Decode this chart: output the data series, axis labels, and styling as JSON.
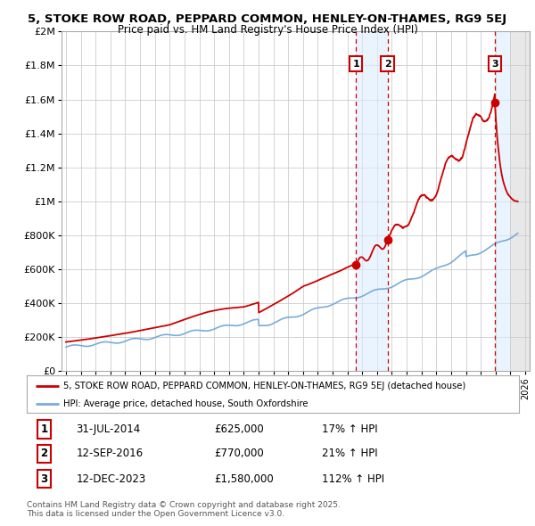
{
  "title_line1": "5, STOKE ROW ROAD, PEPPARD COMMON, HENLEY-ON-THAMES, RG9 5EJ",
  "title_line2": "Price paid vs. HM Land Registry's House Price Index (HPI)",
  "ylabel_ticks": [
    "£0",
    "£200K",
    "£400K",
    "£600K",
    "£800K",
    "£1M",
    "£1.2M",
    "£1.4M",
    "£1.6M",
    "£1.8M",
    "£2M"
  ],
  "ytick_values": [
    0,
    200000,
    400000,
    600000,
    800000,
    1000000,
    1200000,
    1400000,
    1600000,
    1800000,
    2000000
  ],
  "ylim": [
    0,
    2000000
  ],
  "xlim_start": 1994.7,
  "xlim_end": 2026.3,
  "xtick_years": [
    1995,
    1996,
    1997,
    1998,
    1999,
    2000,
    2001,
    2002,
    2003,
    2004,
    2005,
    2006,
    2007,
    2008,
    2009,
    2010,
    2011,
    2012,
    2013,
    2014,
    2015,
    2016,
    2017,
    2018,
    2019,
    2020,
    2021,
    2022,
    2023,
    2024,
    2025,
    2026
  ],
  "red_line_color": "#cc0000",
  "blue_line_color": "#7aacda",
  "legend_label_red": "5, STOKE ROW ROAD, PEPPARD COMMON, HENLEY-ON-THAMES, RG9 5EJ (detached house)",
  "legend_label_blue": "HPI: Average price, detached house, South Oxfordshire",
  "transaction1_date": "31-JUL-2014",
  "transaction1_price": "£625,000",
  "transaction1_hpi": "17% ↑ HPI",
  "transaction1_year": 2014.58,
  "transaction1_value": 625000,
  "transaction2_date": "12-SEP-2016",
  "transaction2_price": "£770,000",
  "transaction2_hpi": "21% ↑ HPI",
  "transaction2_year": 2016.7,
  "transaction2_value": 770000,
  "transaction3_date": "12-DEC-2023",
  "transaction3_price": "£1,580,000",
  "transaction3_hpi": "112% ↑ HPI",
  "transaction3_year": 2023.95,
  "transaction3_value": 1580000,
  "footnote_line1": "Contains HM Land Registry data © Crown copyright and database right 2025.",
  "footnote_line2": "This data is licensed under the Open Government Licence v3.0.",
  "background_color": "#ffffff",
  "plot_bg_color": "#ffffff",
  "grid_color": "#cccccc",
  "shade_color": "#ddeeff",
  "hatch_color": "#e8e8e8"
}
